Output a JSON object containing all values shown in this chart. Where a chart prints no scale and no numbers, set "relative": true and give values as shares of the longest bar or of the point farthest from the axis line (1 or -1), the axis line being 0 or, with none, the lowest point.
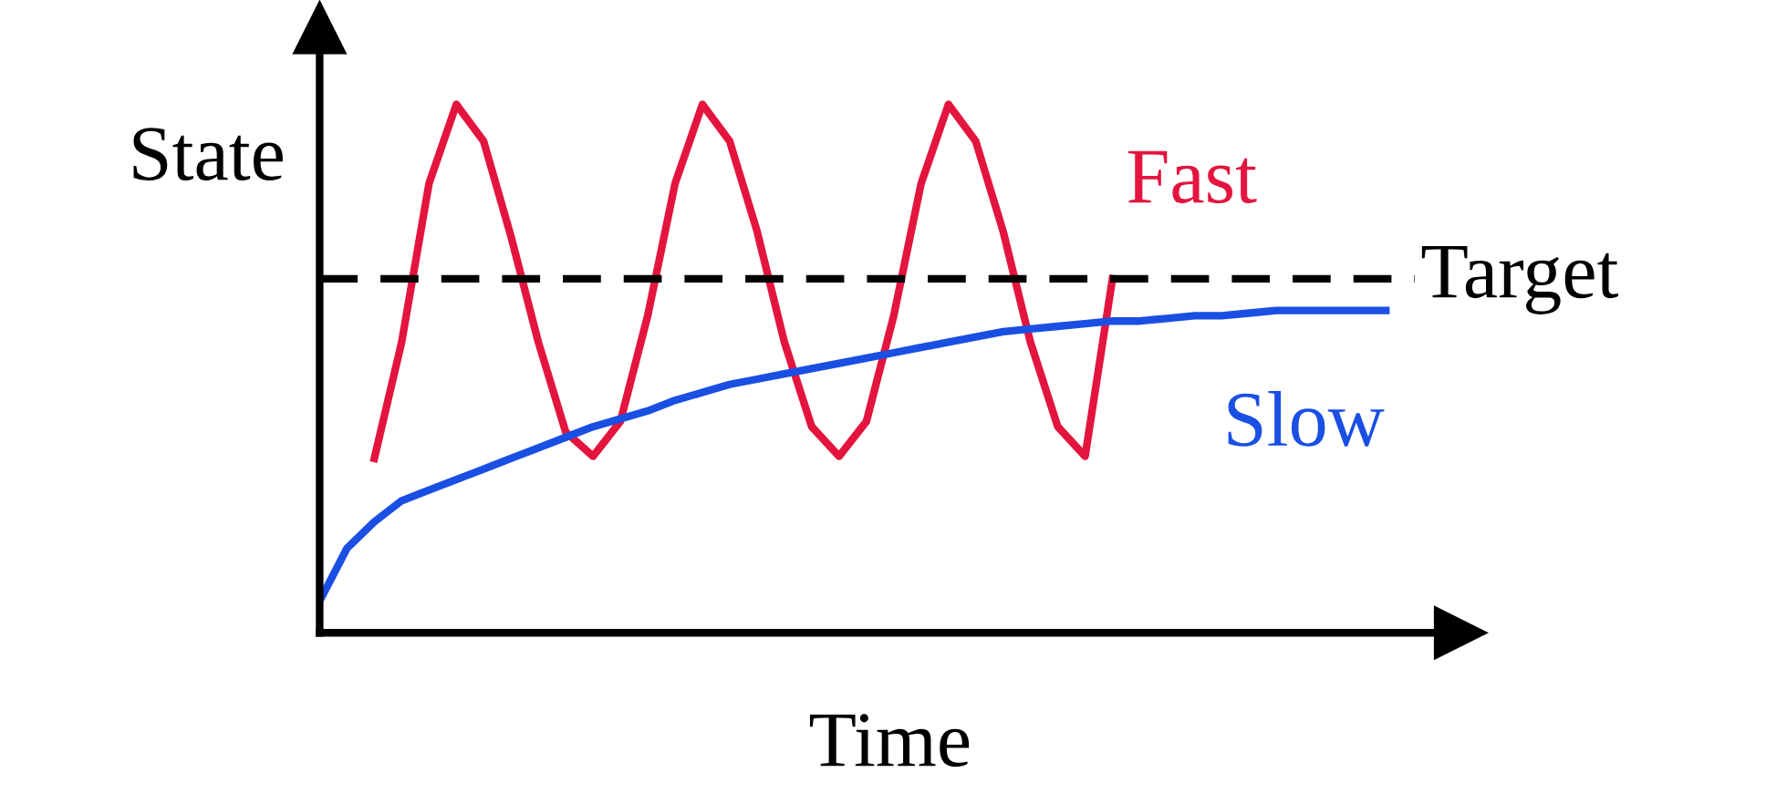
{
  "chart_data": {
    "type": "line",
    "relative": true,
    "xlabel": "Time",
    "ylabel": "State",
    "legend": false,
    "marker": "none",
    "categories": [
      null,
      null,
      null,
      null,
      null,
      null,
      null,
      null,
      null,
      null,
      null,
      null,
      null,
      null,
      null,
      null,
      null,
      null,
      null,
      null,
      null,
      null,
      null,
      null,
      null,
      null,
      null,
      null,
      null,
      null,
      null,
      null,
      null,
      null,
      null,
      null,
      null,
      null,
      null,
      null
    ],
    "series": [
      {
        "name": "Fast",
        "color": "#e3153f",
        "line_style": "solid",
        "values": [
          null,
          null,
          0.33,
          0.55,
          0.85,
          1.0,
          0.93,
          0.75,
          0.55,
          0.38,
          0.334,
          0.4,
          0.6,
          0.85,
          1.0,
          0.93,
          0.76,
          0.55,
          0.39,
          0.334,
          0.4,
          0.6,
          0.85,
          1.0,
          0.93,
          0.76,
          0.55,
          0.39,
          0.334,
          0.67,
          null,
          null,
          null,
          null,
          null,
          null,
          null,
          null,
          null,
          null
        ]
      },
      {
        "name": "Slow",
        "color": "#1a4fe3",
        "line_style": "solid",
        "values": [
          0.06,
          0.16,
          0.21,
          0.25,
          0.27,
          0.29,
          0.31,
          0.33,
          0.35,
          0.37,
          0.39,
          0.405,
          0.42,
          0.44,
          0.455,
          0.47,
          0.48,
          0.49,
          0.5,
          0.51,
          0.52,
          0.53,
          0.54,
          0.55,
          0.56,
          0.57,
          0.575,
          0.58,
          0.585,
          0.59,
          0.59,
          0.595,
          0.6,
          0.6,
          0.605,
          0.61,
          0.61,
          0.61,
          0.61,
          0.61
        ]
      }
    ],
    "ref_lines": [
      {
        "axis": "y",
        "value": 0.67,
        "label": "Target",
        "color": "#000000",
        "line_style": "dashed"
      }
    ]
  }
}
